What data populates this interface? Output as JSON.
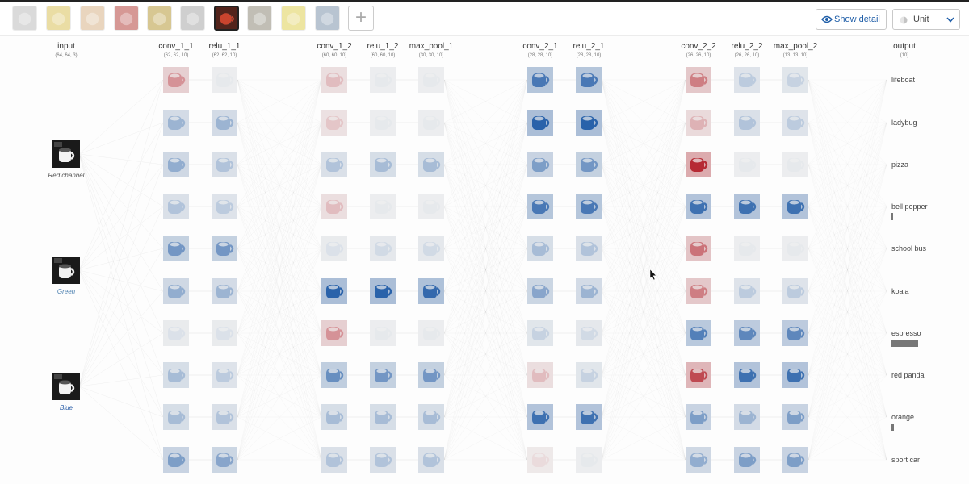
{
  "toolbar": {
    "images": [
      {
        "name": "image-1",
        "tint": "#bdbdbd",
        "selected": false
      },
      {
        "name": "image-2",
        "tint": "#d9c25a",
        "selected": false
      },
      {
        "name": "image-3",
        "tint": "#d8b48a",
        "selected": false
      },
      {
        "name": "image-4",
        "tint": "#b5443f",
        "selected": false
      },
      {
        "name": "image-5",
        "tint": "#b89a3a",
        "selected": false
      },
      {
        "name": "image-6",
        "tint": "#a9a9a9",
        "selected": false
      },
      {
        "name": "image-7",
        "tint": "#b7432e",
        "selected": true
      },
      {
        "name": "image-8",
        "tint": "#8f8a7a",
        "selected": false
      },
      {
        "name": "image-9",
        "tint": "#e0d055",
        "selected": false
      },
      {
        "name": "image-10",
        "tint": "#7f95ad",
        "selected": false
      }
    ],
    "add_symbol": "+",
    "show_detail_label": "Show detail",
    "unit_label": "Unit"
  },
  "layers": [
    {
      "name": "input",
      "dims": "(64, 64, 3)"
    },
    {
      "name": "conv_1_1",
      "dims": "(62, 62, 10)"
    },
    {
      "name": "relu_1_1",
      "dims": "(62, 62, 10)"
    },
    {
      "name": "conv_1_2",
      "dims": "(60, 60, 10)"
    },
    {
      "name": "relu_1_2",
      "dims": "(60, 60, 10)"
    },
    {
      "name": "max_pool_1",
      "dims": "(30, 30, 10)"
    },
    {
      "name": "conv_2_1",
      "dims": "(28, 28, 10)"
    },
    {
      "name": "relu_2_1",
      "dims": "(28, 28, 10)"
    },
    {
      "name": "conv_2_2",
      "dims": "(26, 26, 10)"
    },
    {
      "name": "relu_2_2",
      "dims": "(26, 26, 10)"
    },
    {
      "name": "max_pool_2",
      "dims": "(13, 13, 10)"
    },
    {
      "name": "output",
      "dims": "(10)"
    }
  ],
  "input_channels": [
    "Red channel",
    "Green",
    "Blue"
  ],
  "outputs": [
    {
      "label": "lifeboat",
      "score": 0
    },
    {
      "label": "ladybug",
      "score": 0
    },
    {
      "label": "pizza",
      "score": 0
    },
    {
      "label": "bell pepper",
      "score": 0.05
    },
    {
      "label": "school bus",
      "score": 0
    },
    {
      "label": "koala",
      "score": 0
    },
    {
      "label": "espresso",
      "score": 0.95
    },
    {
      "label": "red panda",
      "score": 0
    },
    {
      "label": "orange",
      "score": 0.08
    },
    {
      "label": "sport car",
      "score": 0
    }
  ],
  "activations": {
    "conv_1_1": [
      0.45,
      0.4,
      0.45,
      0.3,
      0.6,
      0.45,
      0.1,
      0.35,
      0.35,
      0.55
    ],
    "relu_1_1": [
      0.05,
      0.4,
      0.3,
      0.25,
      0.6,
      0.4,
      0.1,
      0.25,
      0.3,
      0.5
    ],
    "conv_1_2": [
      0.25,
      0.2,
      0.3,
      0.25,
      0.1,
      0.95,
      0.45,
      0.65,
      0.35,
      0.3
    ],
    "relu_1_2": [
      0.05,
      0.05,
      0.35,
      0.05,
      0.15,
      0.95,
      0.05,
      0.6,
      0.35,
      0.3
    ],
    "max_pool_1": [
      0.05,
      0.05,
      0.35,
      0.05,
      0.15,
      0.9,
      0.05,
      0.6,
      0.35,
      0.3
    ],
    "conv_2_1": [
      0.8,
      0.95,
      0.55,
      0.8,
      0.35,
      0.5,
      0.2,
      0.25,
      0.85,
      0.1
    ],
    "relu_2_1": [
      0.8,
      0.95,
      0.6,
      0.8,
      0.3,
      0.4,
      0.15,
      0.2,
      0.85,
      0.05
    ],
    "conv_2_2": [
      0.55,
      0.3,
      0.95,
      0.85,
      0.6,
      0.55,
      0.75,
      0.8,
      0.55,
      0.45
    ],
    "relu_2_2": [
      0.25,
      0.3,
      0.05,
      0.85,
      0.05,
      0.25,
      0.7,
      0.85,
      0.4,
      0.55
    ],
    "max_pool_2": [
      0.2,
      0.25,
      0.05,
      0.85,
      0.05,
      0.25,
      0.7,
      0.85,
      0.55,
      0.55
    ]
  },
  "activation_signs": {
    "conv_1_1": [
      -1,
      1,
      1,
      1,
      1,
      1,
      1,
      1,
      1,
      1
    ],
    "conv_1_2": [
      -1,
      -1,
      1,
      -1,
      1,
      1,
      -1,
      1,
      1,
      1
    ],
    "conv_2_1": [
      1,
      1,
      1,
      1,
      1,
      1,
      1,
      -1,
      1,
      -1
    ],
    "conv_2_2": [
      -1,
      -1,
      -1,
      1,
      -1,
      -1,
      1,
      -1,
      1,
      1
    ]
  },
  "colors": {
    "positive": "#1f5aa6",
    "negative": "#b3202a",
    "accent": "#1f5ea8"
  }
}
